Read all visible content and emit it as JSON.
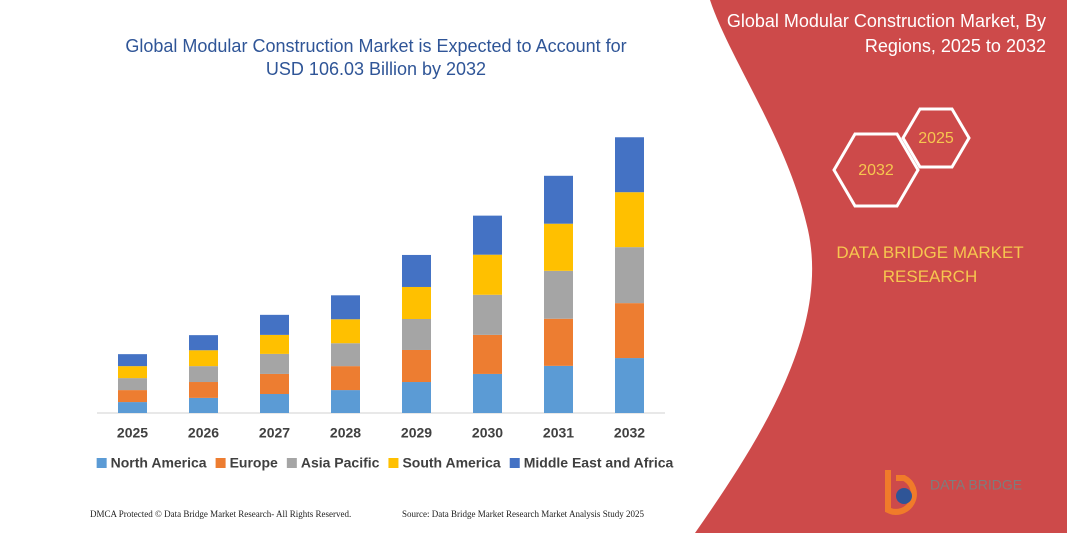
{
  "chart_data": {
    "type": "bar",
    "stacked": true,
    "title": "Global Modular Construction Market is Expected to Account for USD 106.03 Billion by 2032",
    "categories": [
      "2025",
      "2026",
      "2027",
      "2028",
      "2029",
      "2030",
      "2031",
      "2032"
    ],
    "series": [
      {
        "name": "North America",
        "color": "#5b9bd5",
        "values": [
          4.2,
          5.8,
          7.3,
          8.8,
          11.9,
          15.0,
          18.1,
          21.1
        ]
      },
      {
        "name": "Europe",
        "color": "#ed7d31",
        "values": [
          4.6,
          6.1,
          7.7,
          9.2,
          12.3,
          15.0,
          18.1,
          21.1
        ]
      },
      {
        "name": "Asia Pacific",
        "color": "#a5a5a5",
        "values": [
          4.6,
          6.1,
          7.7,
          8.8,
          11.9,
          15.4,
          18.4,
          21.5
        ]
      },
      {
        "name": "South America",
        "color": "#ffc000",
        "values": [
          4.6,
          6.1,
          7.3,
          9.2,
          12.3,
          15.4,
          18.1,
          21.1
        ]
      },
      {
        "name": "Middle East and Africa",
        "color": "#4472c4",
        "values": [
          4.6,
          5.8,
          7.7,
          9.2,
          12.3,
          15.0,
          18.4,
          21.1
        ]
      }
    ],
    "ylim": [
      0,
      106
    ],
    "legend": "bottom"
  },
  "panel": {
    "title": "Global Modular Construction Market, By Regions, 2025 to 2032",
    "hex_right": "2025",
    "hex_left": "2032",
    "brand": "DATA BRIDGE MARKET RESEARCH",
    "logo": "DATA BRIDGE"
  },
  "footer": {
    "left": "DMCA Protected © Data Bridge Market Research-  All Rights Reserved.",
    "right": "Source: Data Bridge Market Research  Market Analysis Study 2025"
  }
}
